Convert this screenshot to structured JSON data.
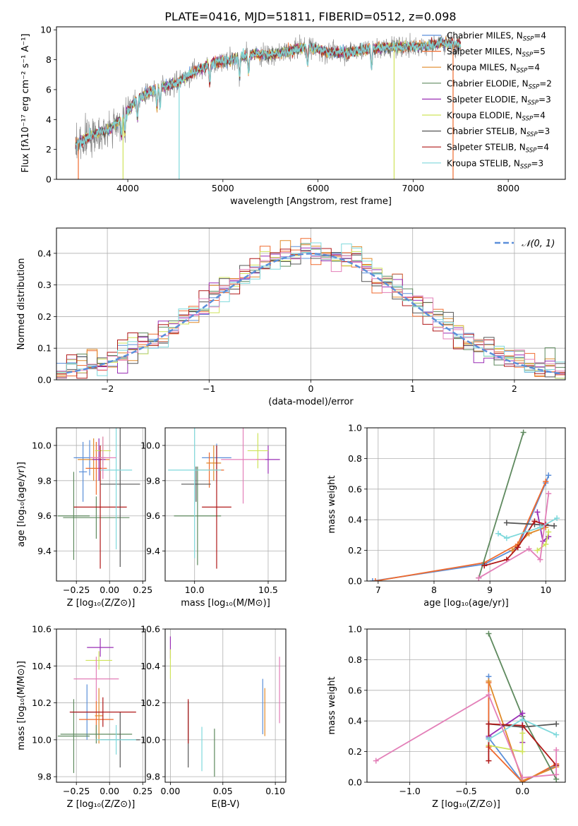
{
  "figure_title": "PLATE=0416, MJD=51811, FIBERID=0512, z=0.098",
  "colors": {
    "chabrier_miles": "#5b8fd9",
    "salpeter_miles": "#ef6a2e",
    "kroupa_miles": "#e08a2a",
    "chabrier_elodie": "#5f8a5f",
    "salpeter_elodie": "#9a2fb5",
    "kroupa_elodie": "#cfe35a",
    "chabrier_stelib": "#555555",
    "salpeter_stelib": "#b01818",
    "kroupa_stelib": "#7fd9dc",
    "pink": "#e37fb8",
    "grid": "#b0b0b0",
    "normal_curve": "#5b8fd9"
  },
  "legend_spectrum": [
    {
      "prefix": "Chabrier MILES, N",
      "sub": "SSP",
      "suffix": "=4",
      "color": "#5b8fd9"
    },
    {
      "prefix": "Salpeter MILES, N",
      "sub": "SSP",
      "suffix": "=5",
      "color": "#ef6a2e"
    },
    {
      "prefix": "Kroupa MILES, N",
      "sub": "SSP",
      "suffix": "=4",
      "color": "#e08a2a"
    },
    {
      "prefix": "Chabrier ELODIE, N",
      "sub": "SSP",
      "suffix": "=2",
      "color": "#5f8a5f"
    },
    {
      "prefix": "Salpeter ELODIE, N",
      "sub": "SSP",
      "suffix": "=3",
      "color": "#9a2fb5"
    },
    {
      "prefix": "Kroupa ELODIE, N",
      "sub": "SSP",
      "suffix": "=4",
      "color": "#cfe35a"
    },
    {
      "prefix": "Chabrier STELIB, N",
      "sub": "SSP",
      "suffix": "=3",
      "color": "#555555"
    },
    {
      "prefix": "Salpeter STELIB, N",
      "sub": "SSP",
      "suffix": "=4",
      "color": "#b01818"
    },
    {
      "prefix": "Kroupa STELIB, N",
      "sub": "SSP",
      "suffix": "=3",
      "color": "#7fd9dc"
    }
  ],
  "chart_data": [
    {
      "id": "spectrum",
      "type": "line",
      "xlabel": "wavelength [Angstrom, rest frame]",
      "ylabel": "Flux [fλ10⁻¹⁷ erg cm⁻² s⁻¹ A⁻¹]",
      "xlim": [
        3250,
        8600
      ],
      "ylim": [
        0,
        10.2
      ],
      "xticks": [
        4000,
        5000,
        6000,
        7000,
        8000
      ],
      "yticks": [
        0,
        2,
        4,
        6,
        8,
        10
      ],
      "grid": false,
      "legend": "upper-right",
      "continuum": {
        "x": [
          3450,
          3600,
          3800,
          3950,
          4100,
          4300,
          4500,
          4700,
          4900,
          5100,
          5300,
          5500,
          5700,
          5900,
          6100,
          6300,
          6500,
          6700,
          6900,
          7100,
          7300,
          7500
        ],
        "y": [
          2.3,
          2.9,
          3.3,
          4.2,
          5.4,
          6.1,
          6.4,
          7.2,
          7.8,
          8.0,
          8.4,
          8.3,
          8.6,
          8.9,
          8.5,
          8.5,
          8.7,
          8.8,
          8.9,
          8.9,
          9.1,
          9.0
        ]
      },
      "data_noise": 0.6,
      "absorption_features": [
        3934,
        3969,
        4102,
        4305,
        4340,
        4861,
        5175,
        5270,
        5890,
        6563
      ]
    },
    {
      "id": "residual_hist",
      "type": "step",
      "xlabel": "(data-model)/error",
      "ylabel": "Normed distribution",
      "xlim": [
        -2.5,
        2.5
      ],
      "ylim": [
        0,
        0.48
      ],
      "xticks": [
        -2,
        -1,
        0,
        1,
        2
      ],
      "yticks": [
        0.0,
        0.1,
        0.2,
        0.3,
        0.4
      ],
      "grid": true,
      "legend": "upper-right",
      "legend_label": "𝒩(0, 1)",
      "bin_width": 0.1
    },
    {
      "id": "age_vs_Z",
      "type": "errorbar",
      "xlabel": "Z [log₁₀(Z/Z⊙)]",
      "ylabel": "age  [log₁₀(age/yr)]",
      "xlim": [
        -0.4,
        0.27
      ],
      "ylim": [
        9.23,
        10.1
      ],
      "xticks": [
        -0.25,
        0.0,
        0.25
      ],
      "yticks": [
        9.4,
        9.6,
        9.8,
        10.0
      ],
      "grid": true,
      "points": [
        {
          "x": -0.2,
          "y": 9.85,
          "xerr": 0.03,
          "yerr": 0.17,
          "c": "#5b8fd9"
        },
        {
          "x": -0.15,
          "y": 9.93,
          "xerr": 0.12,
          "yerr": 0.1,
          "c": "#5b8fd9"
        },
        {
          "x": -0.1,
          "y": 9.87,
          "xerr": 0.08,
          "yerr": 0.15,
          "c": "#ef6a2e"
        },
        {
          "x": -0.12,
          "y": 9.92,
          "xerr": 0.12,
          "yerr": 0.12,
          "c": "#e08a2a"
        },
        {
          "x": -0.27,
          "y": 9.6,
          "xerr": 0.12,
          "yerr": 0.25,
          "c": "#5f8a5f"
        },
        {
          "x": -0.1,
          "y": 9.59,
          "xerr": 0.25,
          "yerr": 0.12,
          "c": "#5f8a5f"
        },
        {
          "x": -0.08,
          "y": 9.92,
          "xerr": 0.05,
          "yerr": 0.12,
          "c": "#9a2fb5"
        },
        {
          "x": -0.05,
          "y": 9.97,
          "xerr": 0.06,
          "yerr": 0.08,
          "c": "#cfe35a"
        },
        {
          "x": 0.08,
          "y": 9.78,
          "xerr": 0.15,
          "yerr": 0.47,
          "c": "#555555"
        },
        {
          "x": -0.07,
          "y": 9.65,
          "xerr": 0.2,
          "yerr": 0.35,
          "c": "#b01818"
        },
        {
          "x": 0.05,
          "y": 9.86,
          "xerr": 0.12,
          "yerr": 0.45,
          "c": "#7fd9dc"
        },
        {
          "x": -0.05,
          "y": 9.93,
          "xerr": 0.1,
          "yerr": 0.12,
          "c": "#e37fb8"
        }
      ]
    },
    {
      "id": "age_vs_mass",
      "type": "errorbar",
      "xlabel": "mass [log₁₀(M/M⊙)]",
      "ylabel": "",
      "xlim": [
        9.8,
        10.62
      ],
      "ylim": [
        9.23,
        10.1
      ],
      "xticks": [
        10.0,
        10.5
      ],
      "yticks": [
        9.4,
        9.6,
        9.8,
        10.0
      ],
      "grid": true,
      "points": [
        {
          "x": 10.15,
          "y": 9.93,
          "xerr": 0.1,
          "yerr": 0.08,
          "c": "#5b8fd9"
        },
        {
          "x": 10.1,
          "y": 9.86,
          "xerr": 0.1,
          "yerr": 0.1,
          "c": "#ef6a2e"
        },
        {
          "x": 10.13,
          "y": 9.9,
          "xerr": 0.05,
          "yerr": 0.1,
          "c": "#e08a2a"
        },
        {
          "x": 10.02,
          "y": 9.6,
          "xerr": 0.16,
          "yerr": 0.28,
          "c": "#5f8a5f"
        },
        {
          "x": 10.5,
          "y": 9.92,
          "xerr": 0.08,
          "yerr": 0.08,
          "c": "#9a2fb5"
        },
        {
          "x": 10.43,
          "y": 9.97,
          "xerr": 0.07,
          "yerr": 0.1,
          "c": "#cfe35a"
        },
        {
          "x": 10.01,
          "y": 9.78,
          "xerr": 0.1,
          "yerr": 0.1,
          "c": "#555555"
        },
        {
          "x": 10.15,
          "y": 9.65,
          "xerr": 0.1,
          "yerr": 0.35,
          "c": "#b01818"
        },
        {
          "x": 10.0,
          "y": 9.86,
          "xerr": 0.18,
          "yerr": 0.5,
          "c": "#7fd9dc"
        },
        {
          "x": 10.33,
          "y": 9.92,
          "xerr": 0.15,
          "yerr": 0.25,
          "c": "#e37fb8"
        }
      ]
    },
    {
      "id": "weight_vs_age",
      "type": "line",
      "xlabel": "age  [log₁₀(age/yr)]",
      "ylabel": "mass weight",
      "xlim": [
        6.8,
        10.35
      ],
      "ylim": [
        0,
        1.0
      ],
      "xticks": [
        7,
        8,
        9,
        10
      ],
      "yticks": [
        0.0,
        0.2,
        0.4,
        0.6,
        0.8,
        1.0
      ],
      "grid": true,
      "series": [
        {
          "x": [
            6.9,
            8.9,
            9.5,
            10.0,
            10.05
          ],
          "y": [
            0.0,
            0.11,
            0.22,
            0.64,
            0.69
          ],
          "c": "#5b8fd9"
        },
        {
          "x": [
            6.95,
            8.9,
            9.5,
            10.0
          ],
          "y": [
            0.0,
            0.12,
            0.24,
            0.65
          ],
          "c": "#ef6a2e"
        },
        {
          "x": [
            9.4,
            9.7,
            10.0
          ],
          "y": [
            0.2,
            0.31,
            0.35
          ],
          "c": "#e08a2a"
        },
        {
          "x": [
            8.8,
            9.6
          ],
          "y": [
            0.02,
            0.97
          ],
          "c": "#5f8a5f"
        },
        {
          "x": [
            9.85,
            9.95,
            10.05
          ],
          "y": [
            0.45,
            0.26,
            0.29
          ],
          "c": "#9a2fb5"
        },
        {
          "x": [
            9.85,
            10.0,
            10.05
          ],
          "y": [
            0.2,
            0.24,
            0.32
          ],
          "c": "#cfe35a"
        },
        {
          "x": [
            9.3,
            9.8,
            10.15
          ],
          "y": [
            0.38,
            0.37,
            0.36
          ],
          "c": "#555555"
        },
        {
          "x": [
            8.9,
            9.3,
            9.5,
            9.8,
            10.0
          ],
          "y": [
            0.1,
            0.14,
            0.22,
            0.39,
            0.37
          ],
          "c": "#b01818"
        },
        {
          "x": [
            9.15,
            9.3,
            9.9,
            10.2
          ],
          "y": [
            0.31,
            0.28,
            0.35,
            0.41
          ],
          "c": "#7fd9dc"
        },
        {
          "x": [
            8.8,
            9.7,
            9.9,
            10.05
          ],
          "y": [
            0.02,
            0.21,
            0.14,
            0.57
          ],
          "c": "#e37fb8"
        }
      ]
    },
    {
      "id": "mass_vs_Z",
      "type": "errorbar",
      "xlabel": "Z [log₁₀(Z/Z⊙)]",
      "ylabel": "mass [log₁₀(M/M⊙)]",
      "xlim": [
        -0.4,
        0.27
      ],
      "ylim": [
        9.77,
        10.6
      ],
      "xticks": [
        -0.25,
        0.0,
        0.25
      ],
      "yticks": [
        9.8,
        10.0,
        10.2,
        10.4,
        10.6
      ],
      "grid": true,
      "points": [
        {
          "x": -0.17,
          "y": 10.15,
          "xerr": 0.12,
          "yerr": 0.15,
          "c": "#5b8fd9"
        },
        {
          "x": -0.1,
          "y": 10.11,
          "xerr": 0.13,
          "yerr": 0.1,
          "c": "#ef6a2e"
        },
        {
          "x": -0.08,
          "y": 10.13,
          "xerr": 0.03,
          "yerr": 0.15,
          "c": "#e08a2a"
        },
        {
          "x": -0.27,
          "y": 10.02,
          "xerr": 0.12,
          "yerr": 0.2,
          "c": "#5f8a5f"
        },
        {
          "x": -0.1,
          "y": 10.03,
          "xerr": 0.27,
          "yerr": 0.05,
          "c": "#5f8a5f"
        },
        {
          "x": -0.07,
          "y": 10.5,
          "xerr": 0.1,
          "yerr": 0.05,
          "c": "#9a2fb5"
        },
        {
          "x": -0.08,
          "y": 10.43,
          "xerr": 0.1,
          "yerr": 0.05,
          "c": "#cfe35a"
        },
        {
          "x": 0.08,
          "y": 10.0,
          "xerr": 0.15,
          "yerr": 0.15,
          "c": "#555555"
        },
        {
          "x": -0.05,
          "y": 10.15,
          "xerr": 0.25,
          "yerr": 0.08,
          "c": "#b01818"
        },
        {
          "x": 0.05,
          "y": 10.0,
          "xerr": 0.15,
          "yerr": 0.08,
          "c": "#7fd9dc"
        },
        {
          "x": -0.1,
          "y": 10.33,
          "xerr": 0.17,
          "yerr": 0.12,
          "c": "#e37fb8"
        }
      ]
    },
    {
      "id": "mass_vs_EBV",
      "type": "errorbar",
      "xlabel": "E(B-V)",
      "ylabel": "",
      "xlim": [
        -0.005,
        0.11
      ],
      "ylim": [
        9.77,
        10.6
      ],
      "xticks": [
        0.0,
        0.05,
        0.1
      ],
      "yticks": [
        9.8,
        10.0,
        10.2,
        10.4,
        10.6
      ],
      "grid": true,
      "points": [
        {
          "x": 0.088,
          "y": 10.18,
          "xerr": 0,
          "yerr": 0.15,
          "c": "#5b8fd9"
        },
        {
          "x": 0.09,
          "y": 10.15,
          "xerr": 0,
          "yerr": 0.13,
          "c": "#e08a2a"
        },
        {
          "x": 0.0,
          "y": 10.5,
          "xerr": 0,
          "yerr": 0.06,
          "c": "#9a2fb5"
        },
        {
          "x": 0.0,
          "y": 10.41,
          "xerr": 0,
          "yerr": 0.08,
          "c": "#cfe35a"
        },
        {
          "x": 0.017,
          "y": 10.03,
          "xerr": 0,
          "yerr": 0.18,
          "c": "#555555"
        },
        {
          "x": 0.017,
          "y": 10.1,
          "xerr": 0,
          "yerr": 0.12,
          "c": "#b01818"
        },
        {
          "x": 0.03,
          "y": 9.95,
          "xerr": 0,
          "yerr": 0.12,
          "c": "#7fd9dc"
        },
        {
          "x": 0.042,
          "y": 9.93,
          "xerr": 0,
          "yerr": 0.13,
          "c": "#5f8a5f"
        },
        {
          "x": 0.104,
          "y": 10.27,
          "xerr": 0,
          "yerr": 0.18,
          "c": "#e37fb8"
        }
      ]
    },
    {
      "id": "weight_vs_Z",
      "type": "line",
      "xlabel": "Z [log₁₀(Z/Z⊙)]",
      "ylabel": "mass weight",
      "xlim": [
        -1.38,
        0.38
      ],
      "ylim": [
        0,
        1.0
      ],
      "xticks": [
        -1.0,
        -0.5,
        0.0
      ],
      "yticks": [
        0.0,
        0.2,
        0.4,
        0.6,
        0.8,
        1.0
      ],
      "grid": true,
      "series": [
        {
          "x": [
            -0.3,
            -0.3,
            0.0,
            0.3
          ],
          "y": [
            0.69,
            0.29,
            0.0,
            0.11
          ],
          "c": "#5b8fd9"
        },
        {
          "x": [
            -0.3,
            -0.3,
            0.0,
            0.3
          ],
          "y": [
            0.65,
            0.23,
            0.0,
            0.12
          ],
          "c": "#ef6a2e"
        },
        {
          "x": [
            -0.3,
            0.0,
            0.3
          ],
          "y": [
            0.66,
            0.01,
            0.1
          ],
          "c": "#e08a2a"
        },
        {
          "x": [
            -0.3,
            0.0,
            0.3
          ],
          "y": [
            0.97,
            0.43,
            0.02
          ],
          "c": "#5f8a5f"
        },
        {
          "x": [
            -0.3,
            0.0,
            0.0
          ],
          "y": [
            0.3,
            0.45,
            0.26
          ],
          "c": "#9a2fb5"
        },
        {
          "x": [
            -0.3,
            0.0,
            0.0
          ],
          "y": [
            0.24,
            0.2,
            0.32
          ],
          "c": "#cfe35a"
        },
        {
          "x": [
            -0.3,
            0.0,
            0.3
          ],
          "y": [
            0.38,
            0.36,
            0.38
          ],
          "c": "#555555"
        },
        {
          "x": [
            -0.3,
            -0.3,
            0.0,
            0.3
          ],
          "y": [
            0.14,
            0.38,
            0.37,
            0.11
          ],
          "c": "#b01818"
        },
        {
          "x": [
            -0.3,
            0.0,
            0.3
          ],
          "y": [
            0.28,
            0.41,
            0.31
          ],
          "c": "#7fd9dc"
        },
        {
          "x": [
            -1.3,
            -0.3,
            0.0,
            0.3,
            0.3
          ],
          "y": [
            0.14,
            0.57,
            0.03,
            0.05,
            0.21
          ],
          "c": "#e37fb8"
        }
      ]
    }
  ]
}
